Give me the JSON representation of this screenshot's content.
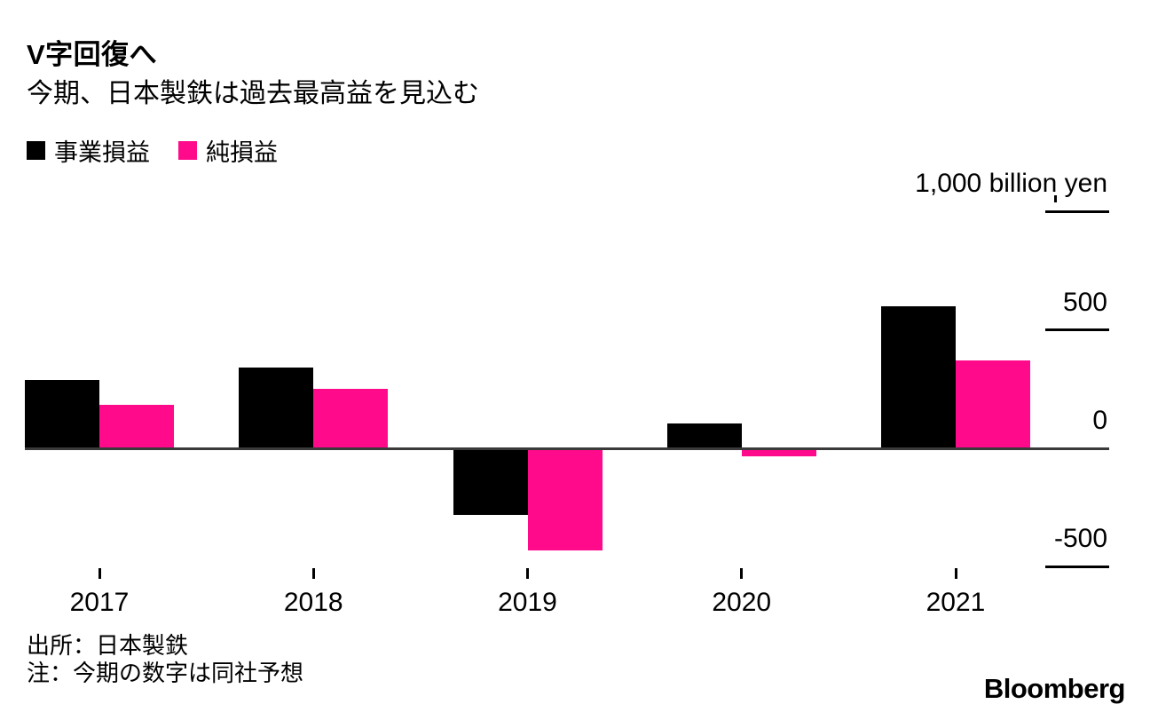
{
  "header": {
    "title": "V字回復へ",
    "subtitle": "今期、日本製鉄は過去最高益を見込む"
  },
  "legend": {
    "items": [
      {
        "key": "business-profit",
        "label": "事業損益",
        "color": "#000000"
      },
      {
        "key": "net-profit",
        "label": "純損益",
        "color": "#ff0a8a"
      }
    ]
  },
  "footer": {
    "source": "出所：日本製鉄",
    "note": "注：今期の数字は同社予想",
    "brand": "Bloomberg"
  },
  "colors": {
    "business": "#000000",
    "net": "#ff0a8a",
    "axis_line": "#3a3a3a",
    "background": "#ffffff"
  },
  "chart_data": {
    "type": "bar",
    "title": "V字回復へ",
    "subtitle": "今期、日本製鉄は過去最高益を見込む",
    "categories": [
      "2017",
      "2018",
      "2019",
      "2020",
      "2021"
    ],
    "series": [
      {
        "key": "business-profit",
        "name": "事業損益",
        "color": "#000000",
        "values": [
          290,
          340,
          -280,
          105,
          600
        ]
      },
      {
        "key": "net-profit",
        "name": "純損益",
        "color": "#ff0a8a",
        "values": [
          185,
          250,
          -430,
          -35,
          370
        ]
      }
    ],
    "xlabel": "",
    "ylabel": "1,000 billion yen",
    "ylim": [
      -500,
      1000
    ],
    "yticks": [
      {
        "value": 1000,
        "label": "1,000 billion yen"
      },
      {
        "value": 500,
        "label": "500"
      },
      {
        "value": 0,
        "label": "0"
      },
      {
        "value": -500,
        "label": "-500"
      }
    ],
    "grid": "right-stubs-only",
    "legend_position": "top-left",
    "source": "出所：日本製鉄",
    "note": "注：今期の数字は同社予想"
  }
}
